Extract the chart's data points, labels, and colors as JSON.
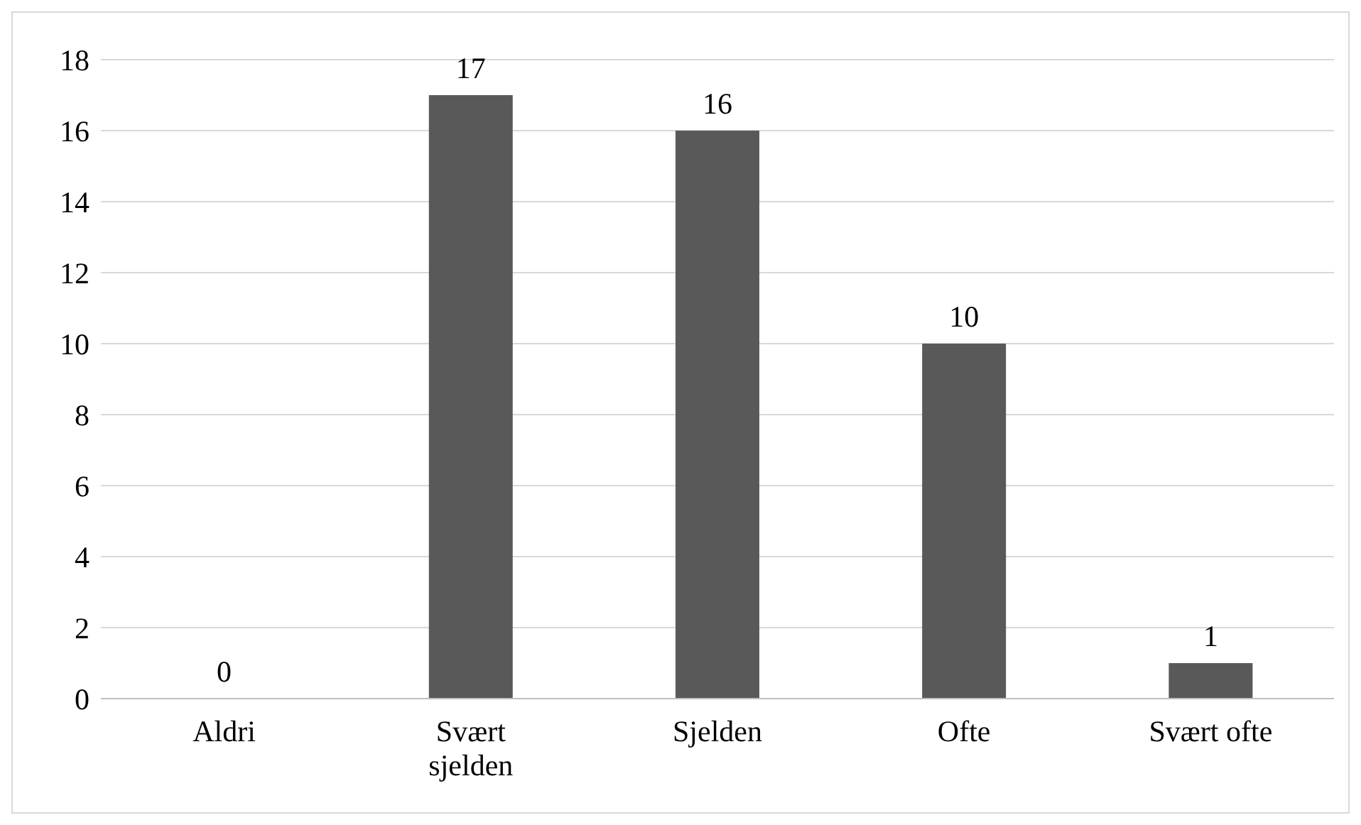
{
  "chart_data": {
    "type": "bar",
    "categories": [
      "Aldri",
      "Svært sjelden",
      "Sjelden",
      "Ofte",
      "Svært ofte"
    ],
    "values": [
      0,
      17,
      16,
      10,
      1
    ],
    "color": "#595959",
    "ylim": [
      0,
      18
    ],
    "yticks": [
      0,
      2,
      4,
      6,
      8,
      10,
      12,
      14,
      16,
      18
    ],
    "grid": "y",
    "data_labels": true
  }
}
